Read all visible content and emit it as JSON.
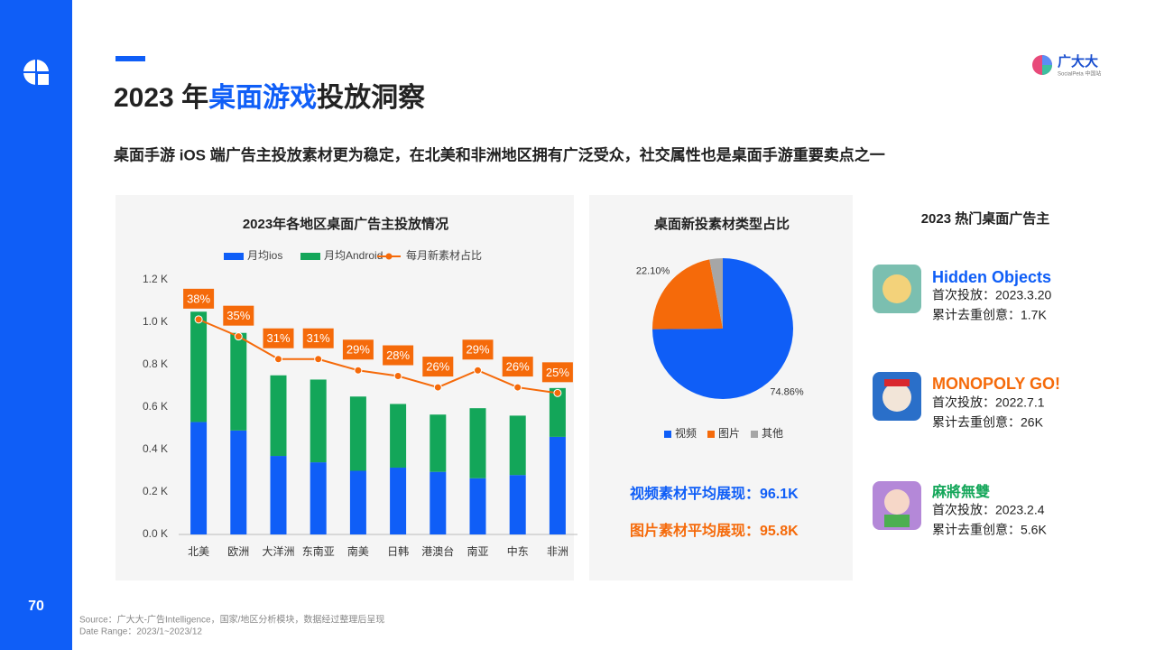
{
  "sidebar": {
    "page_number": "70"
  },
  "header": {
    "title_parts": [
      "2023 年",
      "桌面游戏",
      "投放洞察"
    ],
    "subtitle": "桌面手游 iOS 端广告主投放素材更为稳定，在北美和非洲地区拥有广泛受众，社交属性也是桌面手游重要卖点之一",
    "logo": "广大大",
    "logo_sub": "SocialPeta 中国站"
  },
  "chart_data": [
    {
      "type": "bar",
      "stacked": true,
      "title": "2023年各地区桌面广告主投放情况",
      "categories": [
        "北美",
        "欧洲",
        "大洋洲",
        "东南亚",
        "南美",
        "日韩",
        "港澳台",
        "南亚",
        "中东",
        "非洲"
      ],
      "series": [
        {
          "name": "月均ios",
          "color": "#0f5ef7",
          "values": [
            0.53,
            0.49,
            0.37,
            0.34,
            0.3,
            0.315,
            0.295,
            0.265,
            0.28,
            0.46
          ]
        },
        {
          "name": "月均Android",
          "color": "#13a659",
          "values": [
            0.52,
            0.46,
            0.38,
            0.39,
            0.35,
            0.3,
            0.27,
            0.33,
            0.28,
            0.23
          ]
        },
        {
          "name": "每月新素材占比",
          "type": "line",
          "axis": "y2",
          "color": "#f56a0a",
          "values": [
            38,
            35,
            31,
            31,
            29,
            28,
            26,
            29,
            26,
            25
          ],
          "value_labels": [
            "38%",
            "35%",
            "31%",
            "31%",
            "29%",
            "28%",
            "26%",
            "29%",
            "26%",
            "25%"
          ]
        }
      ],
      "ylim": [
        0,
        1.2
      ],
      "yticks": [
        {
          "value": 0,
          "label": "0.0 K"
        },
        {
          "value": 0.2,
          "label": "0.2 K"
        },
        {
          "value": 0.4,
          "label": "0.4 K"
        },
        {
          "value": 0.6,
          "label": "0.6 K"
        },
        {
          "value": 0.8,
          "label": "0.8 K"
        },
        {
          "value": 1.0,
          "label": "1.0 K"
        },
        {
          "value": 1.2,
          "label": "1.2 K"
        }
      ],
      "y2lim": [
        0,
        45
      ],
      "grid": false,
      "legend": "top"
    },
    {
      "type": "pie",
      "title": "桌面新投素材类型占比",
      "categories": [
        "视频",
        "图片",
        "其他"
      ],
      "values": [
        74.86,
        22.1,
        3.04
      ],
      "value_labels": [
        "74.86%",
        "22.10%",
        null
      ],
      "colors": [
        "#0f5ef7",
        "#f56a0a",
        "#a6a6a6"
      ],
      "legend": "bottom"
    }
  ],
  "pie_stats": [
    "视频素材平均展现：96.1K",
    "图片素材平均展现：95.8K"
  ],
  "advertisers": {
    "title": "2023 热门桌面广告主",
    "items": [
      {
        "name": "Hidden Objects",
        "first": "首次投放：2023.3.20",
        "creatives": "累计去重创意：1.7K"
      },
      {
        "name": "MONOPOLY GO!",
        "first": "首次投放：2022.7.1",
        "creatives": "累计去重创意：26K"
      },
      {
        "name": "麻將無雙",
        "first": "首次投放：2023.2.4",
        "creatives": "累计去重创意：5.6K"
      }
    ]
  },
  "footer": {
    "source": "Source：广大大-广告Intelligence，国家/地区分析模块，数据经过整理后呈现",
    "range": "Date Range：2023/1~2023/12"
  }
}
